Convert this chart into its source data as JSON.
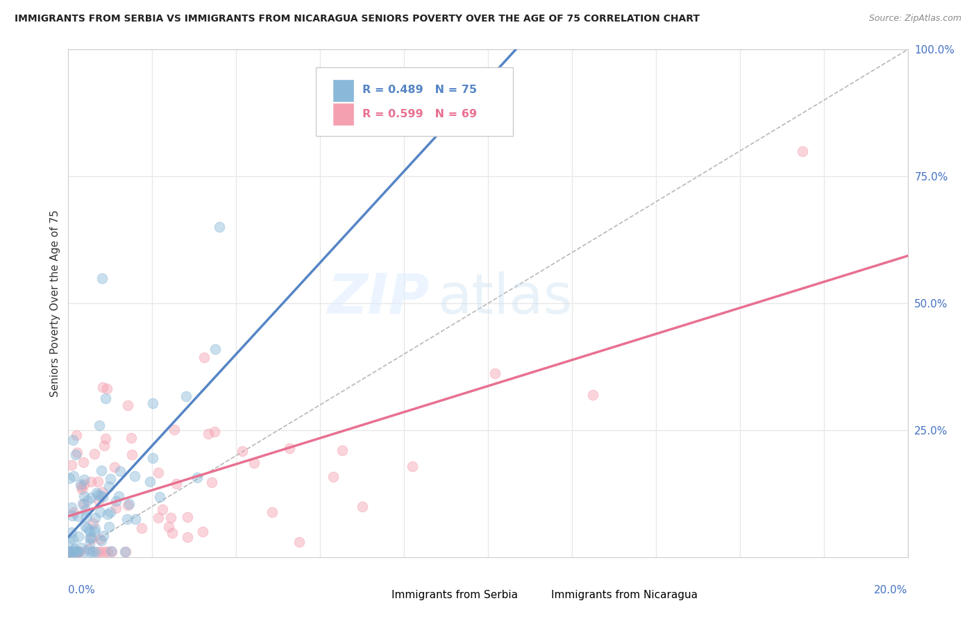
{
  "title": "IMMIGRANTS FROM SERBIA VS IMMIGRANTS FROM NICARAGUA SENIORS POVERTY OVER THE AGE OF 75 CORRELATION CHART",
  "source": "Source: ZipAtlas.com",
  "ylabel": "Seniors Poverty Over the Age of 75",
  "xlim": [
    0.0,
    20.0
  ],
  "ylim": [
    0.0,
    100.0
  ],
  "serbia_R": 0.489,
  "serbia_N": 75,
  "nicaragua_R": 0.599,
  "nicaragua_N": 69,
  "serbia_color": "#8ab8d8",
  "nicaragua_color": "#f4a0b0",
  "serbia_line_color": "#5585c5",
  "nicaragua_line_color": "#e87090",
  "reference_line_color": "#b0b0b0",
  "watermark_zip": "ZIP",
  "watermark_atlas": "atlas",
  "background_color": "#ffffff",
  "grid_color": "#e8e8e8",
  "title_color": "#222222",
  "source_color": "#888888",
  "axis_label_color": "#4472c4",
  "ylabel_color": "#333333"
}
